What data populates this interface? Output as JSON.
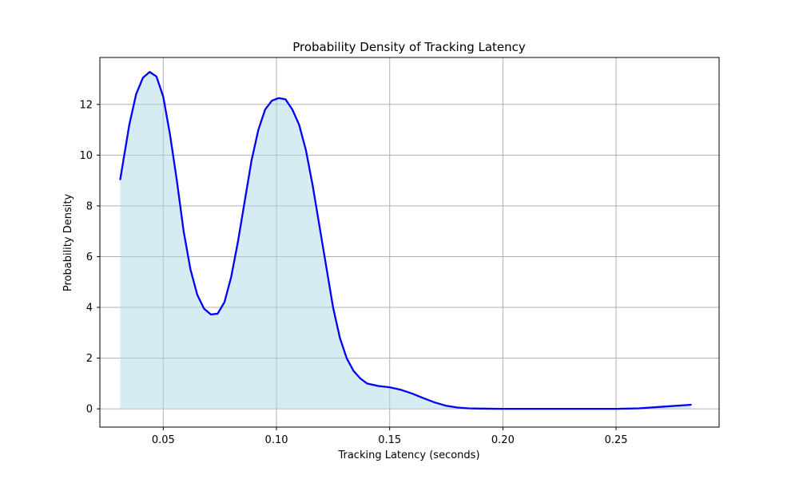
{
  "chart_data": {
    "type": "area",
    "title": "Probability Density of Tracking Latency",
    "xlabel": "Tracking Latency (seconds)",
    "ylabel": "Probability Density",
    "xlim": [
      0.022,
      0.2955
    ],
    "ylim": [
      -0.72,
      13.85
    ],
    "grid": true,
    "x_ticks": [
      0.05,
      0.1,
      0.15,
      0.2,
      0.25
    ],
    "x_tick_labels": [
      "0.05",
      "0.10",
      "0.15",
      "0.20",
      "0.25"
    ],
    "y_ticks": [
      0,
      2,
      4,
      6,
      8,
      10,
      12
    ],
    "y_tick_labels": [
      "0",
      "2",
      "4",
      "6",
      "8",
      "10",
      "12"
    ],
    "series": [
      {
        "line_color": "#0000ff",
        "fill_color": "#add8e6",
        "x": [
          0.031,
          0.035,
          0.038,
          0.041,
          0.044,
          0.047,
          0.05,
          0.053,
          0.056,
          0.059,
          0.062,
          0.065,
          0.068,
          0.071,
          0.074,
          0.077,
          0.08,
          0.083,
          0.086,
          0.089,
          0.092,
          0.095,
          0.098,
          0.101,
          0.104,
          0.107,
          0.11,
          0.113,
          0.116,
          0.119,
          0.122,
          0.125,
          0.128,
          0.131,
          0.134,
          0.137,
          0.14,
          0.145,
          0.15,
          0.155,
          0.16,
          0.165,
          0.17,
          0.175,
          0.18,
          0.185,
          0.19,
          0.2,
          0.21,
          0.22,
          0.23,
          0.24,
          0.25,
          0.26,
          0.27,
          0.283
        ],
        "y": [
          9.05,
          11.2,
          12.4,
          13.05,
          13.28,
          13.1,
          12.3,
          10.8,
          9.0,
          7.0,
          5.5,
          4.5,
          3.95,
          3.72,
          3.75,
          4.2,
          5.2,
          6.6,
          8.2,
          9.8,
          11.0,
          11.8,
          12.15,
          12.25,
          12.2,
          11.8,
          11.2,
          10.2,
          8.8,
          7.2,
          5.6,
          4.0,
          2.8,
          2.0,
          1.5,
          1.2,
          1.0,
          0.9,
          0.85,
          0.75,
          0.6,
          0.42,
          0.25,
          0.12,
          0.05,
          0.02,
          0.01,
          0.0,
          0.0,
          0.0,
          0.0,
          0.0,
          0.0,
          0.02,
          0.08,
          0.16
        ]
      }
    ]
  }
}
